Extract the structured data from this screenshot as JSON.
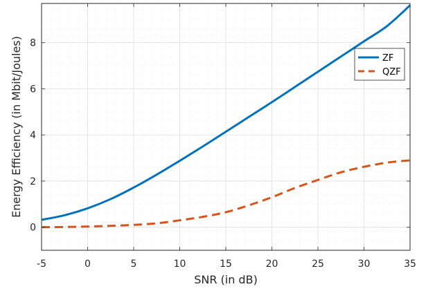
{
  "chart_data": {
    "type": "line",
    "xlabel": "SNR (in dB)",
    "ylabel": "Energy Efficiency (in Mbit/Joules)",
    "xlim": [
      -5,
      35
    ],
    "ylim": [
      -1,
      9.7
    ],
    "xticks": [
      -5,
      0,
      5,
      10,
      15,
      20,
      25,
      30,
      35
    ],
    "yticks": [
      0,
      2,
      4,
      6,
      8
    ],
    "grid": true,
    "minor_grid": true,
    "legend_position": "top-right",
    "series": [
      {
        "name": "ZF",
        "color": "#0072BD",
        "style": "solid",
        "x": [
          -5,
          -2.5,
          0,
          2.5,
          5,
          7.5,
          10,
          12.5,
          15,
          17.5,
          20,
          22.5,
          25,
          27.5,
          30,
          32.5,
          35
        ],
        "y": [
          0.32,
          0.52,
          0.82,
          1.22,
          1.72,
          2.28,
          2.88,
          3.5,
          4.14,
          4.78,
          5.42,
          6.08,
          6.74,
          7.4,
          8.06,
          8.72,
          9.62
        ]
      },
      {
        "name": "QZF",
        "color": "#D95319",
        "style": "dashed",
        "x": [
          -5,
          -2.5,
          0,
          2.5,
          5,
          7.5,
          10,
          12.5,
          15,
          17.5,
          20,
          22.5,
          25,
          27.5,
          30,
          32.5,
          35
        ],
        "y": [
          0.0,
          0.01,
          0.03,
          0.06,
          0.1,
          0.17,
          0.3,
          0.45,
          0.65,
          0.95,
          1.3,
          1.7,
          2.05,
          2.38,
          2.62,
          2.8,
          2.9
        ]
      }
    ]
  }
}
